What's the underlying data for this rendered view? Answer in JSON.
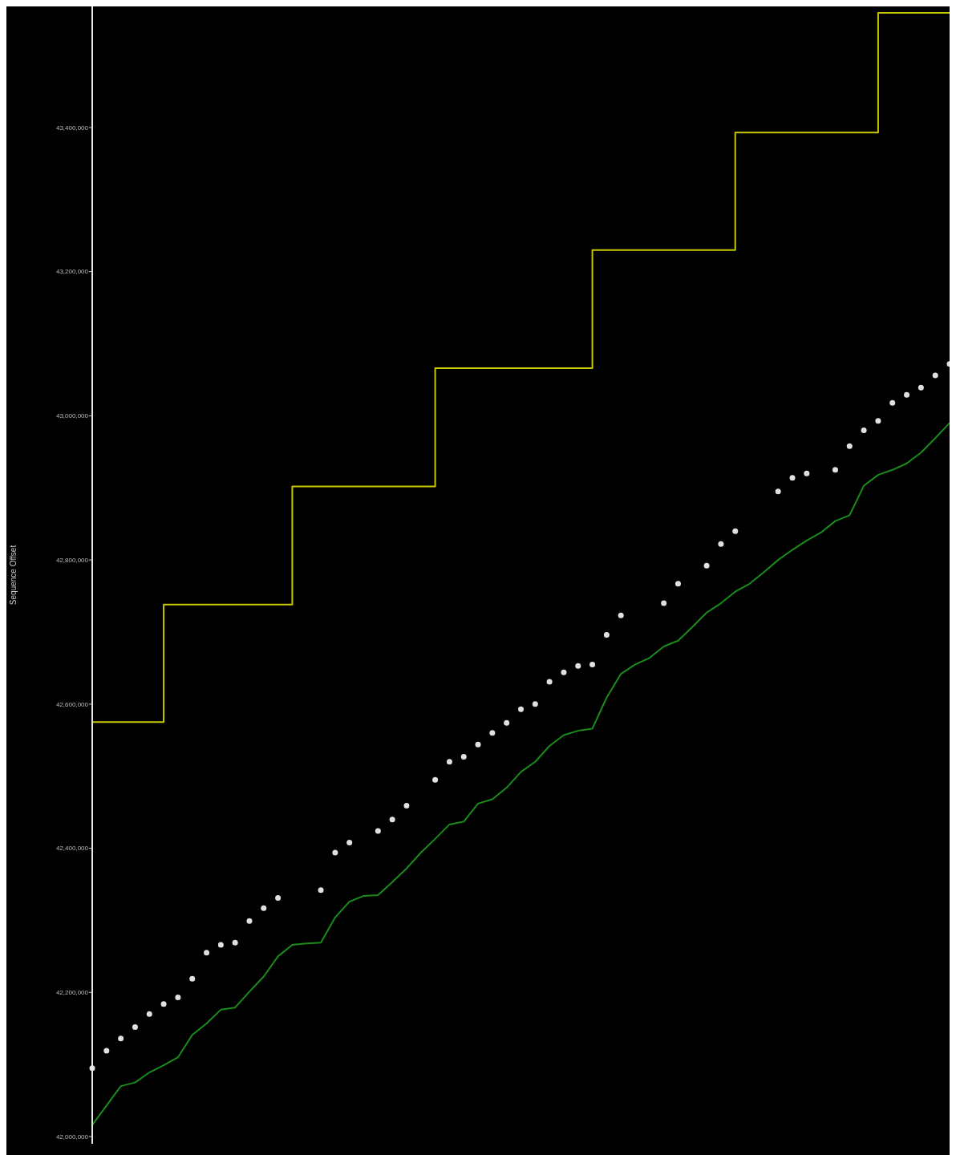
{
  "chart_data": {
    "type": "line",
    "ylabel": "Sequence Offset",
    "tick_labels": "y",
    "categories": [
      null,
      null,
      null,
      null,
      null,
      null,
      null,
      null,
      null,
      null,
      null,
      null,
      null,
      null,
      null,
      null,
      null,
      null,
      null,
      null,
      null,
      null,
      null,
      null,
      null,
      null,
      null,
      null,
      null,
      null,
      null,
      null,
      null,
      null,
      null,
      null,
      null,
      null,
      null,
      null,
      null,
      null,
      null,
      null,
      null,
      null,
      null,
      null,
      null,
      null,
      null,
      null,
      null,
      null,
      null,
      null,
      null,
      null,
      null,
      null,
      null
    ],
    "ylim": [
      41990000,
      43568000
    ],
    "yticks": [
      {
        "value": 42000000,
        "label": "42,000,000"
      },
      {
        "value": 42200000,
        "label": "42,200,000"
      },
      {
        "value": 42400000,
        "label": "42,400,000"
      },
      {
        "value": 42600000,
        "label": "42,600,000"
      },
      {
        "value": 42800000,
        "label": "42,800,000"
      },
      {
        "value": 43000000,
        "label": "43,000,000"
      },
      {
        "value": 43200000,
        "label": "43,200,000"
      },
      {
        "value": 43400000,
        "label": "43,400,000"
      }
    ],
    "series": [
      {
        "type": "step",
        "color": "#c8c800",
        "values": [
          42575000,
          42575000,
          42575000,
          42575000,
          42575000,
          42575000,
          42738000,
          42738000,
          42738000,
          42738000,
          42738000,
          42738000,
          42738000,
          42738000,
          42738000,
          42902000,
          42902000,
          42902000,
          42902000,
          42902000,
          42902000,
          42902000,
          42902000,
          42902000,
          42902000,
          43066000,
          43066000,
          43066000,
          43066000,
          43066000,
          43066000,
          43066000,
          43066000,
          43066000,
          43066000,
          43066000,
          43230000,
          43230000,
          43230000,
          43230000,
          43230000,
          43230000,
          43230000,
          43230000,
          43230000,
          43230000,
          43393000,
          43393000,
          43393000,
          43393000,
          43393000,
          43393000,
          43393000,
          43393000,
          43393000,
          43393000,
          43559000,
          43559000,
          43559000,
          43559000,
          43559000
        ]
      },
      {
        "type": "scatter",
        "marker": "circle",
        "color": "#e0e0e0",
        "values": [
          42095000,
          42119000,
          42136000,
          42152000,
          42170000,
          42184000,
          42193000,
          42219000,
          42255000,
          42266000,
          42269000,
          42299000,
          42317000,
          42331000,
          null,
          null,
          42342000,
          42394000,
          42408000,
          null,
          42424000,
          42440000,
          42459000,
          null,
          42495000,
          42520000,
          42527000,
          42544000,
          42560000,
          42574000,
          42593000,
          42600000,
          42631000,
          42644000,
          42653000,
          42655000,
          42696000,
          42723000,
          null,
          null,
          42740000,
          42767000,
          null,
          42792000,
          42822000,
          42840000,
          null,
          null,
          42895000,
          42914000,
          42920000,
          null,
          42925000,
          42958000,
          42980000,
          42993000,
          43018000,
          43029000,
          43039000,
          43056000,
          43072000
        ]
      },
      {
        "type": "line",
        "color": "#1a8c1a",
        "values": [
          42016000,
          42043000,
          42070000,
          42075000,
          42089000,
          42099000,
          42110000,
          42141000,
          42157000,
          42176000,
          42179000,
          42201000,
          42222000,
          42250000,
          42266000,
          42268000,
          42269000,
          42304000,
          42326000,
          42334000,
          42335000,
          42353000,
          42372000,
          42394000,
          42413000,
          42433000,
          42437000,
          42462000,
          42468000,
          42484000,
          42506000,
          42520000,
          42542000,
          42557000,
          42563000,
          42566000,
          42609000,
          42642000,
          42655000,
          42664000,
          42680000,
          42688000,
          42707000,
          42727000,
          42740000,
          42756000,
          42767000,
          42783000,
          42800000,
          42814000,
          42827000,
          42838000,
          42854000,
          42862000,
          42903000,
          42918000,
          42925000,
          42934000,
          42949000,
          42969000,
          42990000
        ]
      }
    ]
  }
}
